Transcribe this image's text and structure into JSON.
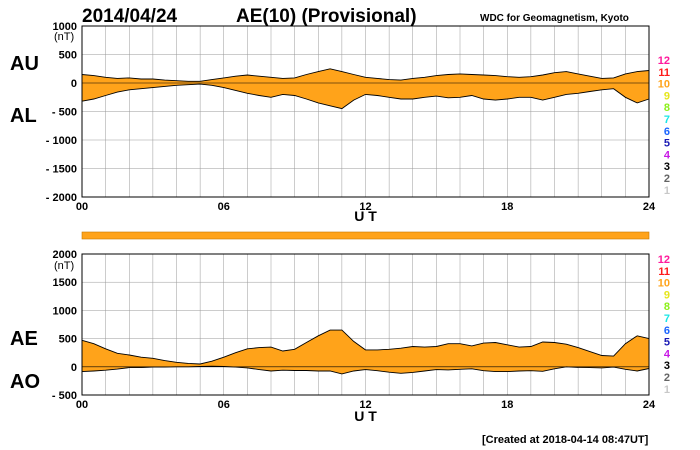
{
  "header": {
    "date": "2014/04/24",
    "title": "AE(10) (Provisional)",
    "source": "WDC for Geomagnetism, Kyoto"
  },
  "footer": {
    "created": "[Created at 2018-04-14 08:47UT]"
  },
  "colors": {
    "fill": "#ffa31a",
    "line": "#000000",
    "grid": "#999999",
    "band": "#ffa31a"
  },
  "scale_legend": [
    {
      "label": "12",
      "color": "#ff1a9c"
    },
    {
      "label": "11",
      "color": "#ff1a1a"
    },
    {
      "label": "10",
      "color": "#ffa31a"
    },
    {
      "label": "9",
      "color": "#e6e61a"
    },
    {
      "label": "8",
      "color": "#8cf01a"
    },
    {
      "label": "7",
      "color": "#1ae6e6"
    },
    {
      "label": "6",
      "color": "#1a64ff"
    },
    {
      "label": "5",
      "color": "#1a1ab4"
    },
    {
      "label": "4",
      "color": "#c81ae6"
    },
    {
      "label": "3",
      "color": "#000000"
    },
    {
      "label": "2",
      "color": "#646464"
    },
    {
      "label": "1",
      "color": "#c8c8c8"
    }
  ],
  "chart_data": [
    {
      "type": "area",
      "name": "AU/AL",
      "upper_label": "AU",
      "lower_label": "AL",
      "unit_label": "(nT)",
      "ylim": [
        -2000,
        1000
      ],
      "yticks": [
        1000,
        500,
        0,
        -500,
        -1000,
        -1500,
        -2000
      ],
      "ytick_labels": [
        "1000",
        "500",
        "0",
        "- 500",
        "- 1000",
        "- 1500",
        "- 2000"
      ],
      "xlabel": "U T",
      "xlim": [
        0,
        24
      ],
      "xticks": [
        0,
        6,
        12,
        18,
        24
      ],
      "xtick_labels": [
        "00",
        "06",
        "12",
        "18",
        "24"
      ],
      "x": [
        0,
        0.5,
        1,
        1.5,
        2,
        2.5,
        3,
        3.5,
        4,
        4.5,
        5,
        5.5,
        6,
        6.5,
        7,
        7.5,
        8,
        8.5,
        9,
        9.5,
        10,
        10.5,
        11,
        11.5,
        12,
        12.5,
        13,
        13.5,
        14,
        14.5,
        15,
        15.5,
        16,
        16.5,
        17,
        17.5,
        18,
        18.5,
        19,
        19.5,
        20,
        20.5,
        21,
        21.5,
        22,
        22.5,
        23,
        23.5,
        24
      ],
      "series": [
        {
          "name": "AU",
          "values": [
            150,
            130,
            100,
            80,
            90,
            70,
            70,
            50,
            40,
            30,
            30,
            60,
            90,
            120,
            140,
            120,
            100,
            80,
            90,
            150,
            200,
            250,
            200,
            150,
            100,
            80,
            60,
            50,
            80,
            100,
            130,
            150,
            160,
            150,
            140,
            130,
            110,
            100,
            110,
            140,
            180,
            200,
            160,
            120,
            80,
            90,
            160,
            200,
            220
          ]
        },
        {
          "name": "AL",
          "values": [
            -320,
            -280,
            -220,
            -160,
            -120,
            -100,
            -80,
            -60,
            -40,
            -30,
            -20,
            -40,
            -80,
            -130,
            -180,
            -220,
            -250,
            -200,
            -220,
            -280,
            -350,
            -400,
            -450,
            -300,
            -200,
            -220,
            -250,
            -280,
            -280,
            -250,
            -230,
            -260,
            -250,
            -220,
            -280,
            -300,
            -280,
            -250,
            -250,
            -300,
            -250,
            -200,
            -180,
            -150,
            -120,
            -100,
            -250,
            -350,
            -280
          ]
        }
      ]
    },
    {
      "type": "area",
      "name": "AE/AO",
      "upper_label": "AE",
      "lower_label": "AO",
      "unit_label": "(nT)",
      "ylim": [
        -500,
        2000
      ],
      "yticks": [
        2000,
        1500,
        1000,
        500,
        0,
        -500
      ],
      "ytick_labels": [
        "2000",
        "1500",
        "1000",
        "500",
        "0",
        "- 500"
      ],
      "xlabel": "U T",
      "xlim": [
        0,
        24
      ],
      "xticks": [
        0,
        6,
        12,
        18,
        24
      ],
      "xtick_labels": [
        "00",
        "06",
        "12",
        "18",
        "24"
      ],
      "x": [
        0,
        0.5,
        1,
        1.5,
        2,
        2.5,
        3,
        3.5,
        4,
        4.5,
        5,
        5.5,
        6,
        6.5,
        7,
        7.5,
        8,
        8.5,
        9,
        9.5,
        10,
        10.5,
        11,
        11.5,
        12,
        12.5,
        13,
        13.5,
        14,
        14.5,
        15,
        15.5,
        16,
        16.5,
        17,
        17.5,
        18,
        18.5,
        19,
        19.5,
        20,
        20.5,
        21,
        21.5,
        22,
        22.5,
        23,
        23.5,
        24
      ],
      "series": [
        {
          "name": "AE",
          "values": [
            470,
            410,
            320,
            240,
            210,
            170,
            150,
            110,
            80,
            60,
            50,
            100,
            170,
            250,
            320,
            340,
            350,
            280,
            310,
            430,
            550,
            650,
            650,
            450,
            300,
            300,
            310,
            330,
            360,
            350,
            360,
            410,
            410,
            370,
            420,
            430,
            390,
            350,
            360,
            440,
            430,
            400,
            340,
            270,
            200,
            190,
            410,
            550,
            500
          ]
        },
        {
          "name": "AO",
          "values": [
            -85,
            -75,
            -60,
            -40,
            -15,
            -15,
            -5,
            -5,
            0,
            0,
            5,
            10,
            5,
            -5,
            -20,
            -50,
            -75,
            -60,
            -65,
            -65,
            -75,
            -75,
            -125,
            -75,
            -50,
            -70,
            -95,
            -115,
            -100,
            -75,
            -50,
            -55,
            -45,
            -35,
            -70,
            -85,
            -85,
            -75,
            -70,
            -80,
            -35,
            0,
            -10,
            -15,
            -20,
            -5,
            -45,
            -75,
            -30
          ]
        }
      ]
    }
  ]
}
